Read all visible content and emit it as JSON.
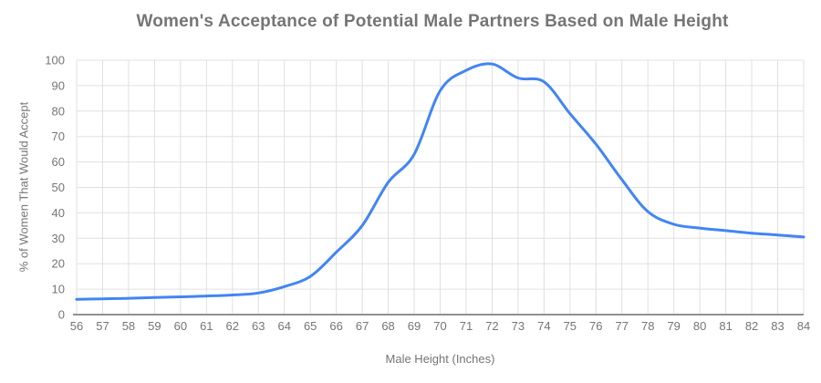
{
  "chart_data": {
    "type": "line",
    "title": "Women's Acceptance of Potential Male Partners Based on Male Height",
    "xlabel": "Male Height (Inches)",
    "ylabel": "% of Women That Would Accept",
    "x": [
      56,
      57,
      58,
      59,
      60,
      61,
      62,
      63,
      64,
      65,
      66,
      67,
      68,
      69,
      70,
      71,
      72,
      73,
      74,
      75,
      76,
      77,
      78,
      79,
      80,
      81,
      82,
      83,
      84
    ],
    "series": [
      {
        "name": "% of Women That Would Accept",
        "color": "#4285f4",
        "values": [
          6,
          6.2,
          6.4,
          6.7,
          7,
          7.3,
          7.7,
          8.5,
          11,
          15,
          24.5,
          35,
          52,
          63,
          88,
          96,
          98.5,
          93,
          91.5,
          79,
          67,
          53,
          40.5,
          35.5,
          34,
          33,
          32,
          31.3,
          30.5
        ]
      }
    ],
    "xlim": [
      56,
      84
    ],
    "ylim": [
      0,
      100
    ],
    "ytick_step": 10,
    "grid": "both",
    "legend": "none",
    "smooth": true,
    "colors": {
      "line": "#4285f4",
      "grid": "#e0e0e0",
      "axis": "#919191",
      "text": "#757575",
      "title": "#757575"
    }
  }
}
